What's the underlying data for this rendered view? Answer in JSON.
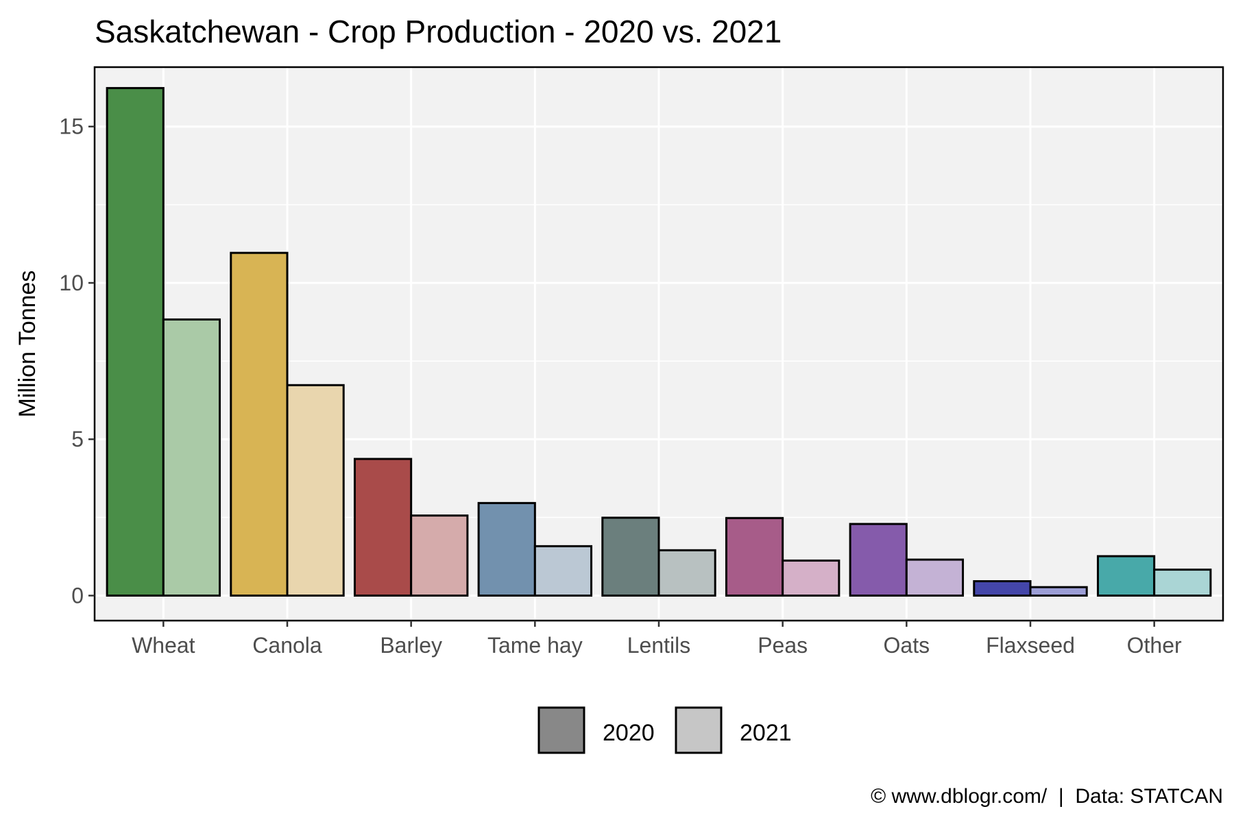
{
  "chart_data": {
    "type": "bar",
    "title": "Saskatchewan - Crop Production - 2020 vs. 2021",
    "xlabel": "",
    "ylabel": "Million Tonnes",
    "ylim": [
      -0.8,
      16.9
    ],
    "yticks": [
      0,
      5,
      10,
      15
    ],
    "grid": true,
    "legend_position": "bottom",
    "categories": [
      "Wheat",
      "Canola",
      "Barley",
      "Tame hay",
      "Lentils",
      "Peas",
      "Oats",
      "Flaxseed",
      "Other"
    ],
    "series": [
      {
        "name": "2020",
        "values": [
          16.23,
          10.96,
          4.37,
          2.96,
          2.49,
          2.48,
          2.29,
          0.46,
          1.26
        ]
      },
      {
        "name": "2021",
        "values": [
          8.83,
          6.73,
          2.56,
          1.58,
          1.45,
          1.12,
          1.15,
          0.27,
          0.83
        ]
      }
    ],
    "colors": {
      "2020": [
        "#4a8e48",
        "#d8b454",
        "#a94b4a",
        "#7291ae",
        "#6b7f7d",
        "#a75c89",
        "#855bab",
        "#4446a9",
        "#48a9a9"
      ],
      "2021": [
        "#aacaa7",
        "#e9d6ae",
        "#d5abab",
        "#bbc8d4",
        "#b8c1c1",
        "#d5b0c8",
        "#c4b2d5",
        "#9c9ed6",
        "#aad5d5"
      ],
      "legend": [
        "#888888",
        "#c6c6c6"
      ]
    }
  },
  "caption": "© www.dblogr.com/  |  Data: STATCAN"
}
